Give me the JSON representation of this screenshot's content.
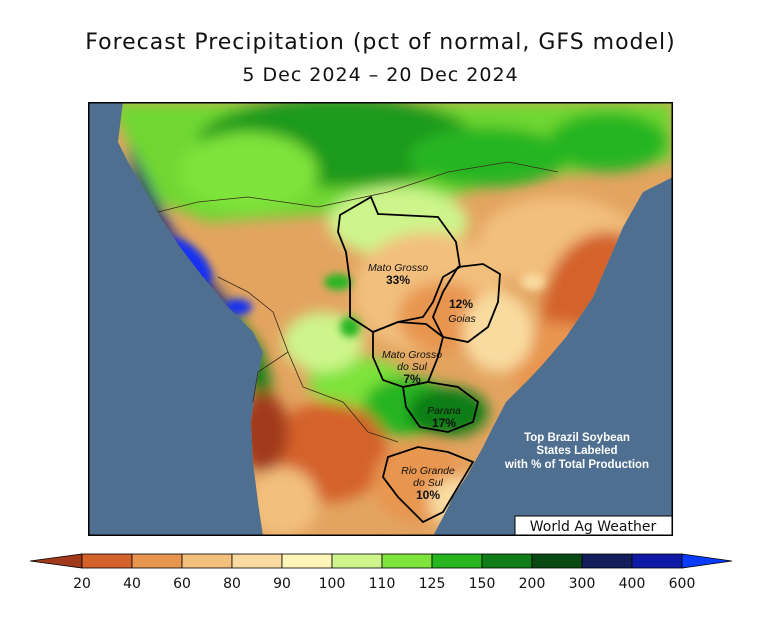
{
  "title": "Forecast Precipitation (pct of normal, GFS model)",
  "date_range": "5 Dec 2024 – 20 Dec 2024",
  "credit": "World Ag Weather",
  "note_lines": [
    "Top Brazil Soybean",
    "States Labeled",
    "with % of Total Production"
  ],
  "states": [
    {
      "name_lines": [
        "Mato Grosso"
      ],
      "pct": "33%"
    },
    {
      "name_lines": [
        "Goias"
      ],
      "pct": "12%"
    },
    {
      "name_lines": [
        "Mato Grosso",
        "do Sul"
      ],
      "pct": "7%"
    },
    {
      "name_lines": [
        "Parana"
      ],
      "pct": "17%"
    },
    {
      "name_lines": [
        "Rio Grande",
        "do Sul"
      ],
      "pct": "10%"
    }
  ],
  "legend": {
    "ticks": [
      "20",
      "40",
      "60",
      "80",
      "90",
      "100",
      "110",
      "125",
      "150",
      "200",
      "300",
      "400",
      "600"
    ],
    "colors": [
      "#a13a1c",
      "#d4622b",
      "#e89550",
      "#f2bf7d",
      "#f9dba0",
      "#fff5b8",
      "#cdf58b",
      "#7ee33a",
      "#27b520",
      "#0f7d18",
      "#0a4a12",
      "#131e5c",
      "#0e1aa5",
      "#1830f0",
      "#0a3cff"
    ]
  },
  "colors": {
    "ocean": "#4f6f90",
    "border": "#000000"
  }
}
